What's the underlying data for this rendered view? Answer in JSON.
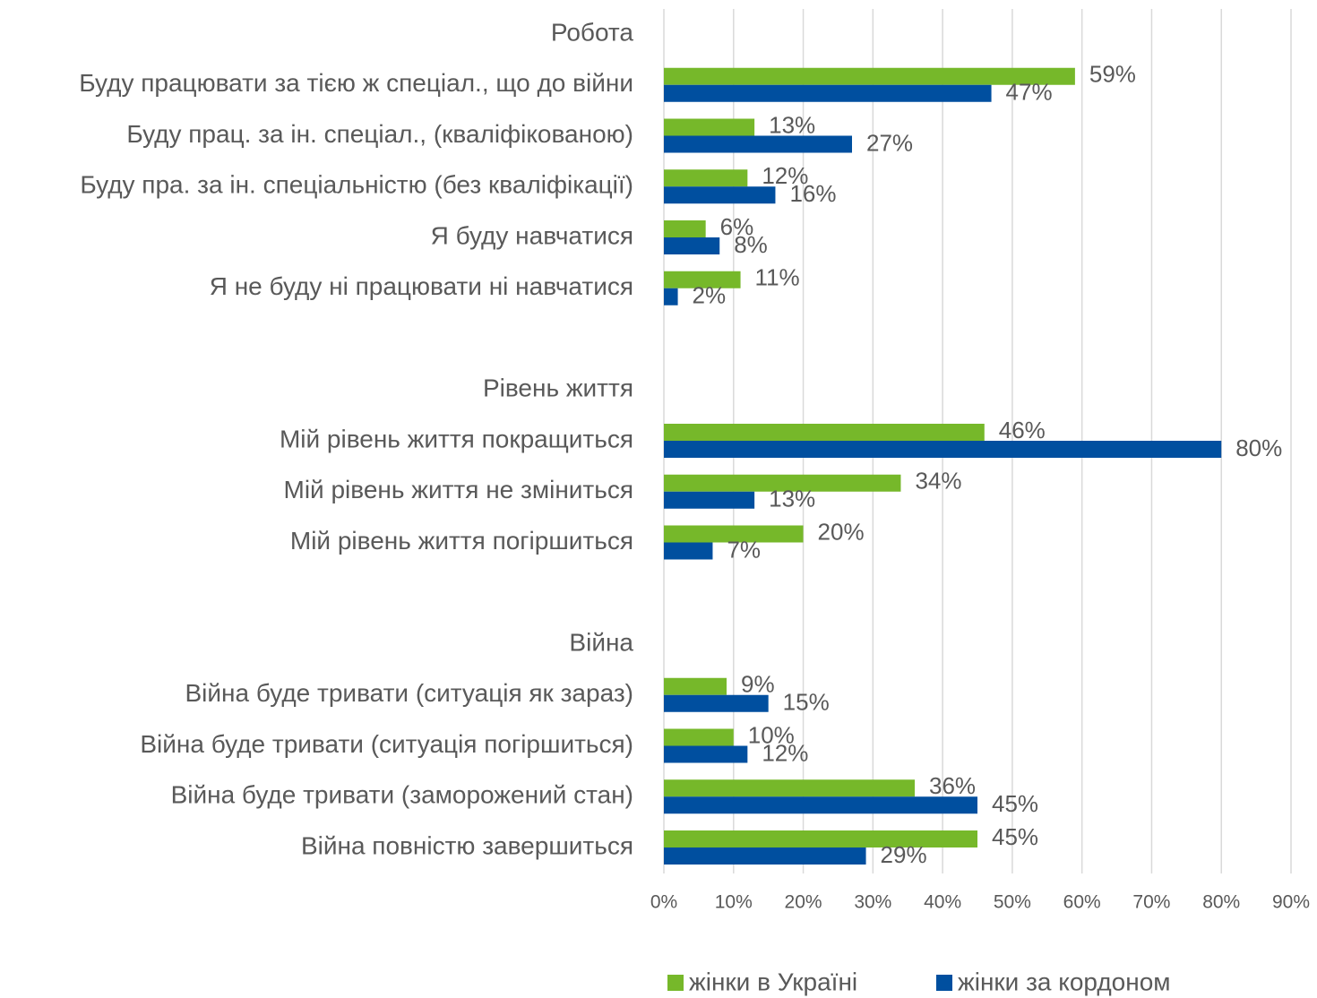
{
  "chart_data": {
    "type": "bar",
    "orientation": "horizontal",
    "categories": [
      "Робота",
      "Буду працювати за тією ж спеціал., що до війни",
      "Буду прац. за ін. спеціал., (кваліфікованою)",
      "Буду пра. за ін. спеціальністю (без кваліфікації)",
      "Я буду навчатися",
      "Я не буду ні працювати ні навчатися",
      null,
      "Рівень життя",
      "Мій рівень життя покращиться",
      "Мій рівень життя не зміниться",
      "Мій рівень життя погіршиться",
      null,
      "Війна",
      "Війна буде тривати (ситуація як зараз)",
      "Війна буде тривати (ситуація погіршиться)",
      "Війна буде тривати (заморожений стан)",
      "Війна повністю завершиться"
    ],
    "series": [
      {
        "name": "жінки в Україні",
        "color": "#76b82a",
        "values": [
          null,
          59,
          13,
          12,
          6,
          11,
          null,
          null,
          46,
          34,
          20,
          null,
          null,
          9,
          10,
          36,
          45
        ],
        "value_labels": [
          null,
          "59%",
          "13%",
          "12%",
          "6%",
          "11%",
          null,
          null,
          "46%",
          "34%",
          "20%",
          null,
          null,
          "9%",
          "10%",
          "36%",
          "45%"
        ]
      },
      {
        "name": "жінки за кордоном",
        "color": "#004f9f",
        "values": [
          null,
          47,
          27,
          16,
          8,
          2,
          null,
          null,
          80,
          13,
          7,
          null,
          null,
          15,
          12,
          45,
          29
        ],
        "value_labels": [
          null,
          "47%",
          "27%",
          "16%",
          "8%",
          "2%",
          null,
          null,
          "80%",
          "13%",
          "7%",
          null,
          null,
          "15%",
          "12%",
          "45%",
          "29%"
        ]
      }
    ],
    "xlim": [
      0,
      90
    ],
    "xticks": [
      {
        "value": 0,
        "label": "0%"
      },
      {
        "value": 10,
        "label": "10%"
      },
      {
        "value": 20,
        "label": "20%"
      },
      {
        "value": 30,
        "label": "30%"
      },
      {
        "value": 40,
        "label": "40%"
      },
      {
        "value": 50,
        "label": "50%"
      },
      {
        "value": 60,
        "label": "60%"
      },
      {
        "value": 70,
        "label": "70%"
      },
      {
        "value": 80,
        "label": "80%"
      },
      {
        "value": 90,
        "label": "90%"
      }
    ],
    "grid": true,
    "legend": "bottom"
  }
}
